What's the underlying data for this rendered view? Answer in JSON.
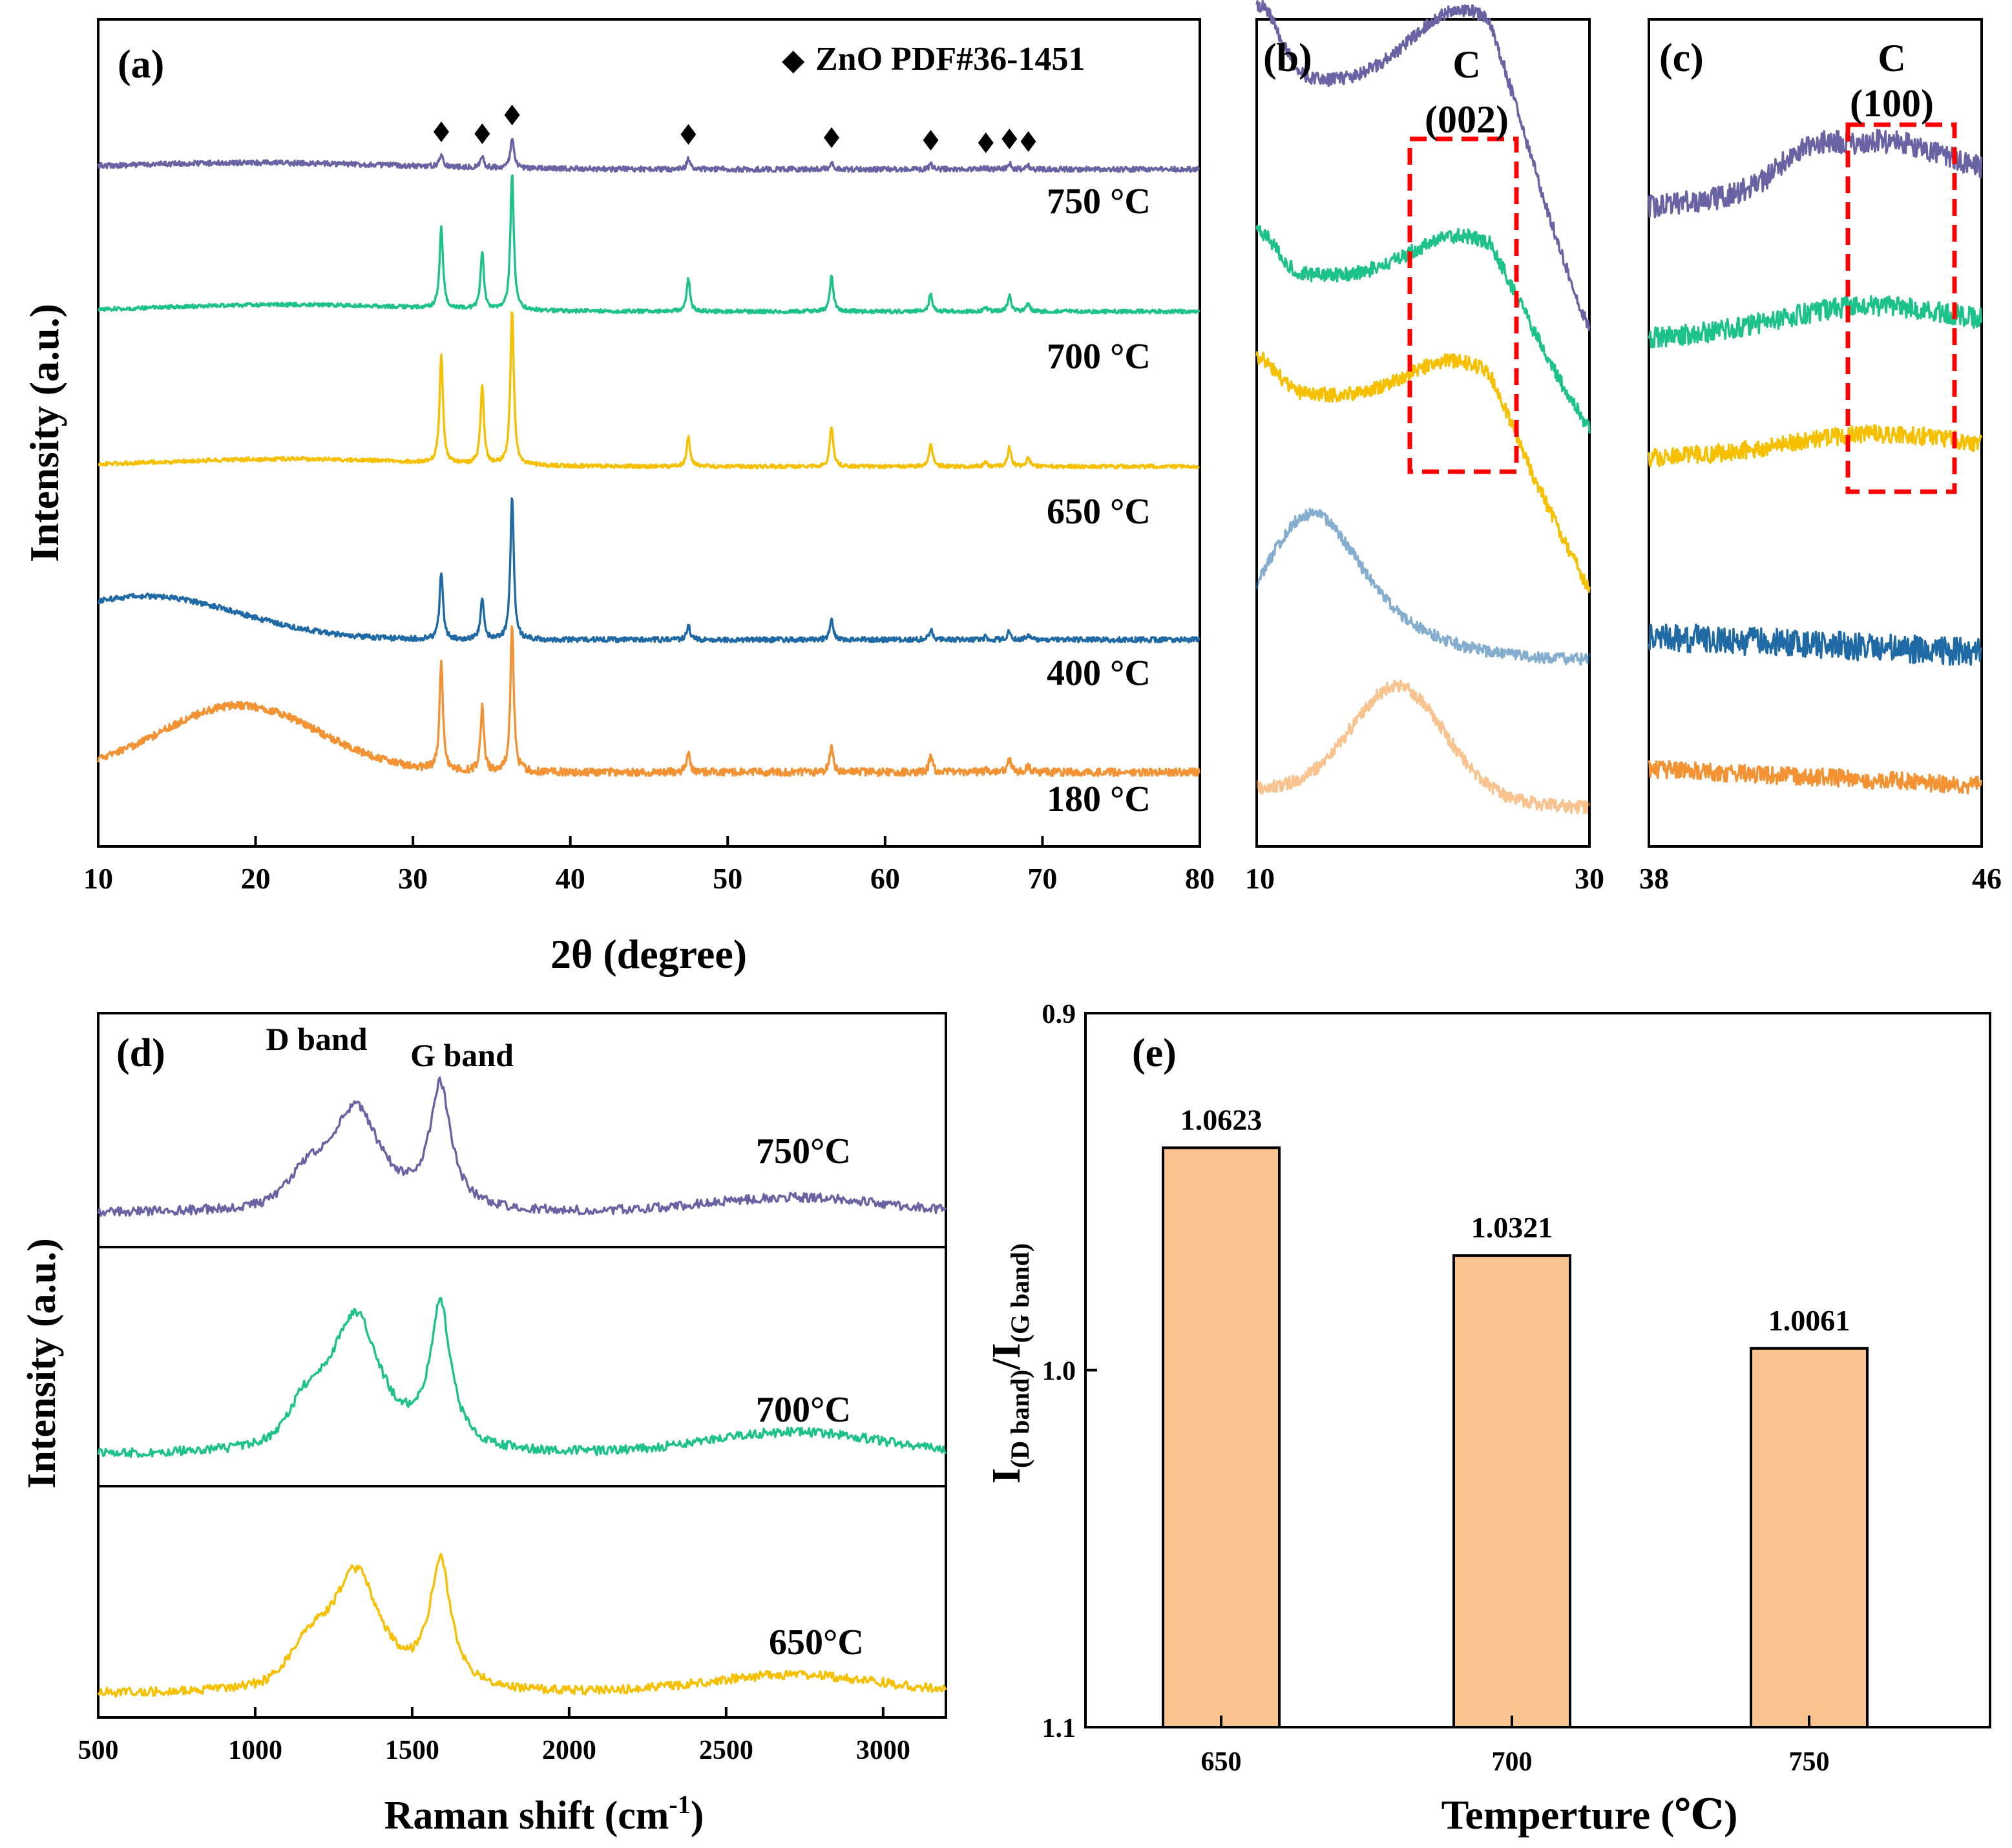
{
  "colors": {
    "750": "#6a63a3",
    "700": "#1dc28a",
    "650": "#f6c000",
    "400": "#1f6aa5",
    "180": "#f39233",
    "bar": "#f9c48f",
    "box": "#ff0000"
  },
  "panel_a": {
    "label": "(a)",
    "legend_text": "ZnO PDF#36-1451",
    "xlabel": "2θ (degree)",
    "ylabel": "Intensity (a.u.)",
    "x_ticks": [
      "10",
      "20",
      "30",
      "40",
      "50",
      "60",
      "70",
      "80"
    ],
    "series_labels": [
      "750 °C",
      "700 °C",
      "650 °C",
      "400 °C",
      "180 °C"
    ]
  },
  "panel_b": {
    "label": "(b)",
    "annotation": "C",
    "annotation_hkl": "(002)",
    "x_ticks": [
      "10",
      "30"
    ]
  },
  "panel_c": {
    "label": "(c)",
    "annotation": "C",
    "annotation_hkl": "(100)",
    "x_ticks": [
      "38",
      "46"
    ]
  },
  "panel_d": {
    "label": "(d)",
    "xlabel": "Raman shift (cm",
    "xlabel_sup": "-1",
    "xlabel_end": ")",
    "ylabel": "Intensity (a.u.)",
    "x_ticks": [
      "500",
      "1000",
      "1500",
      "2000",
      "2500",
      "3000"
    ],
    "band_labels": [
      "D band",
      "G band"
    ],
    "series_labels": [
      "750°C",
      "700°C",
      "650°C"
    ]
  },
  "panel_e": {
    "label": "(e)",
    "xlabel": "Temperture (℃)",
    "ylabel_i1": "I",
    "ylabel_sub1": "(D band)",
    "ylabel_mid": "/I",
    "ylabel_sub2": "(G band)",
    "y_ticks": [
      "1.1",
      "1.0",
      "0.9"
    ],
    "value_labels": [
      "1.0623",
      "1.0321",
      "1.0061"
    ]
  },
  "chart_data": [
    {
      "type": "line",
      "title": "(a)",
      "xlabel": "2θ (degree)",
      "ylabel": "Intensity (a.u.)",
      "xlim": [
        10,
        80
      ],
      "legend": "ZnO PDF#36-1451",
      "reference_peaks_2theta": [
        31.8,
        34.4,
        36.3,
        47.5,
        56.6,
        62.9,
        66.4,
        67.9,
        69.1
      ],
      "series": [
        {
          "name": "750 °C",
          "baseline": 1.0,
          "peak_heights": [
            0.2,
            0.17,
            0.46,
            0.16,
            0.11,
            0.07,
            0.03,
            0.09,
            0.05
          ],
          "hump": {
            "center": 20,
            "width": 9,
            "height": 0.1
          }
        },
        {
          "name": "700 °C",
          "baseline": 0.0,
          "peak_heights": [
            0.6,
            0.42,
            1.0,
            0.24,
            0.26,
            0.13,
            0.03,
            0.12,
            0.06
          ],
          "hump": {
            "center": 22,
            "width": 8,
            "height": 0.05
          }
        },
        {
          "name": "650 °C",
          "baseline": 0.0,
          "peak_heights": [
            0.72,
            0.52,
            1.05,
            0.2,
            0.27,
            0.16,
            0.03,
            0.13,
            0.06
          ],
          "hump": {
            "center": 22,
            "width": 8,
            "height": 0.05
          }
        },
        {
          "name": "400 °C",
          "baseline": 0.0,
          "peak_heights": [
            0.46,
            0.28,
            0.98,
            0.1,
            0.13,
            0.07,
            0.02,
            0.06,
            0.03
          ],
          "hump": {
            "center": 13,
            "width": 6,
            "height": 0.3
          }
        },
        {
          "name": "180 °C",
          "baseline": 0.0,
          "peak_heights": [
            0.78,
            0.46,
            1.05,
            0.13,
            0.19,
            0.11,
            0.02,
            0.09,
            0.05
          ],
          "hump": {
            "center": 19,
            "width": 5,
            "height": 0.48
          }
        }
      ]
    },
    {
      "type": "line",
      "title": "(b)",
      "xlim": [
        10,
        30
      ],
      "annotation": "C (002)",
      "highlight_x": [
        19.5,
        26
      ],
      "series": [
        {
          "name": "750 °C",
          "hump_center": 22.5,
          "trend": "decreasing"
        },
        {
          "name": "700 °C",
          "hump_center": 22.5,
          "trend": "decreasing"
        },
        {
          "name": "650 °C",
          "hump_center": 22,
          "trend": "decreasing"
        },
        {
          "name": "400 °C",
          "hump_center": 13,
          "trend": "decreasing"
        },
        {
          "name": "180 °C",
          "hump_center": 18.5,
          "trend": "flat"
        }
      ]
    },
    {
      "type": "line",
      "title": "(c)",
      "xlim": [
        38,
        46
      ],
      "annotation": "C (100)",
      "highlight_x": [
        43,
        45.8
      ],
      "series": [
        {
          "name": "750 °C",
          "hump_center": 43.5
        },
        {
          "name": "700 °C",
          "hump_center": 43.3
        },
        {
          "name": "650 °C",
          "hump_center": 43.5
        },
        {
          "name": "400 °C",
          "hump_center": null
        },
        {
          "name": "180 °C",
          "hump_center": null
        }
      ]
    },
    {
      "type": "line",
      "title": "(d)",
      "xlabel": "Raman shift (cm-1)",
      "ylabel": "Intensity (a.u.)",
      "xlim": [
        500,
        3200
      ],
      "bands": [
        {
          "name": "D band",
          "position": 1320
        },
        {
          "name": "G band",
          "position": 1590
        }
      ],
      "series": [
        {
          "name": "750°C",
          "D_height": 0.68,
          "G_height": 0.62,
          "bump_2D": 0.08
        },
        {
          "name": "700°C",
          "D_height": 0.78,
          "G_height": 0.62,
          "bump_2D": 0.1
        },
        {
          "name": "650°C",
          "D_height": 0.74,
          "G_height": 0.6,
          "bump_2D": 0.09
        }
      ]
    },
    {
      "type": "bar",
      "title": "(e)",
      "xlabel": "Temperture (℃)",
      "ylabel": "I(D band)/I(G band)",
      "categories": [
        "650",
        "700",
        "750"
      ],
      "values": [
        1.0623,
        1.0321,
        1.0061
      ],
      "ylim": [
        0.9,
        1.1
      ],
      "y_ticks": [
        0.9,
        1.0,
        1.1
      ]
    }
  ]
}
